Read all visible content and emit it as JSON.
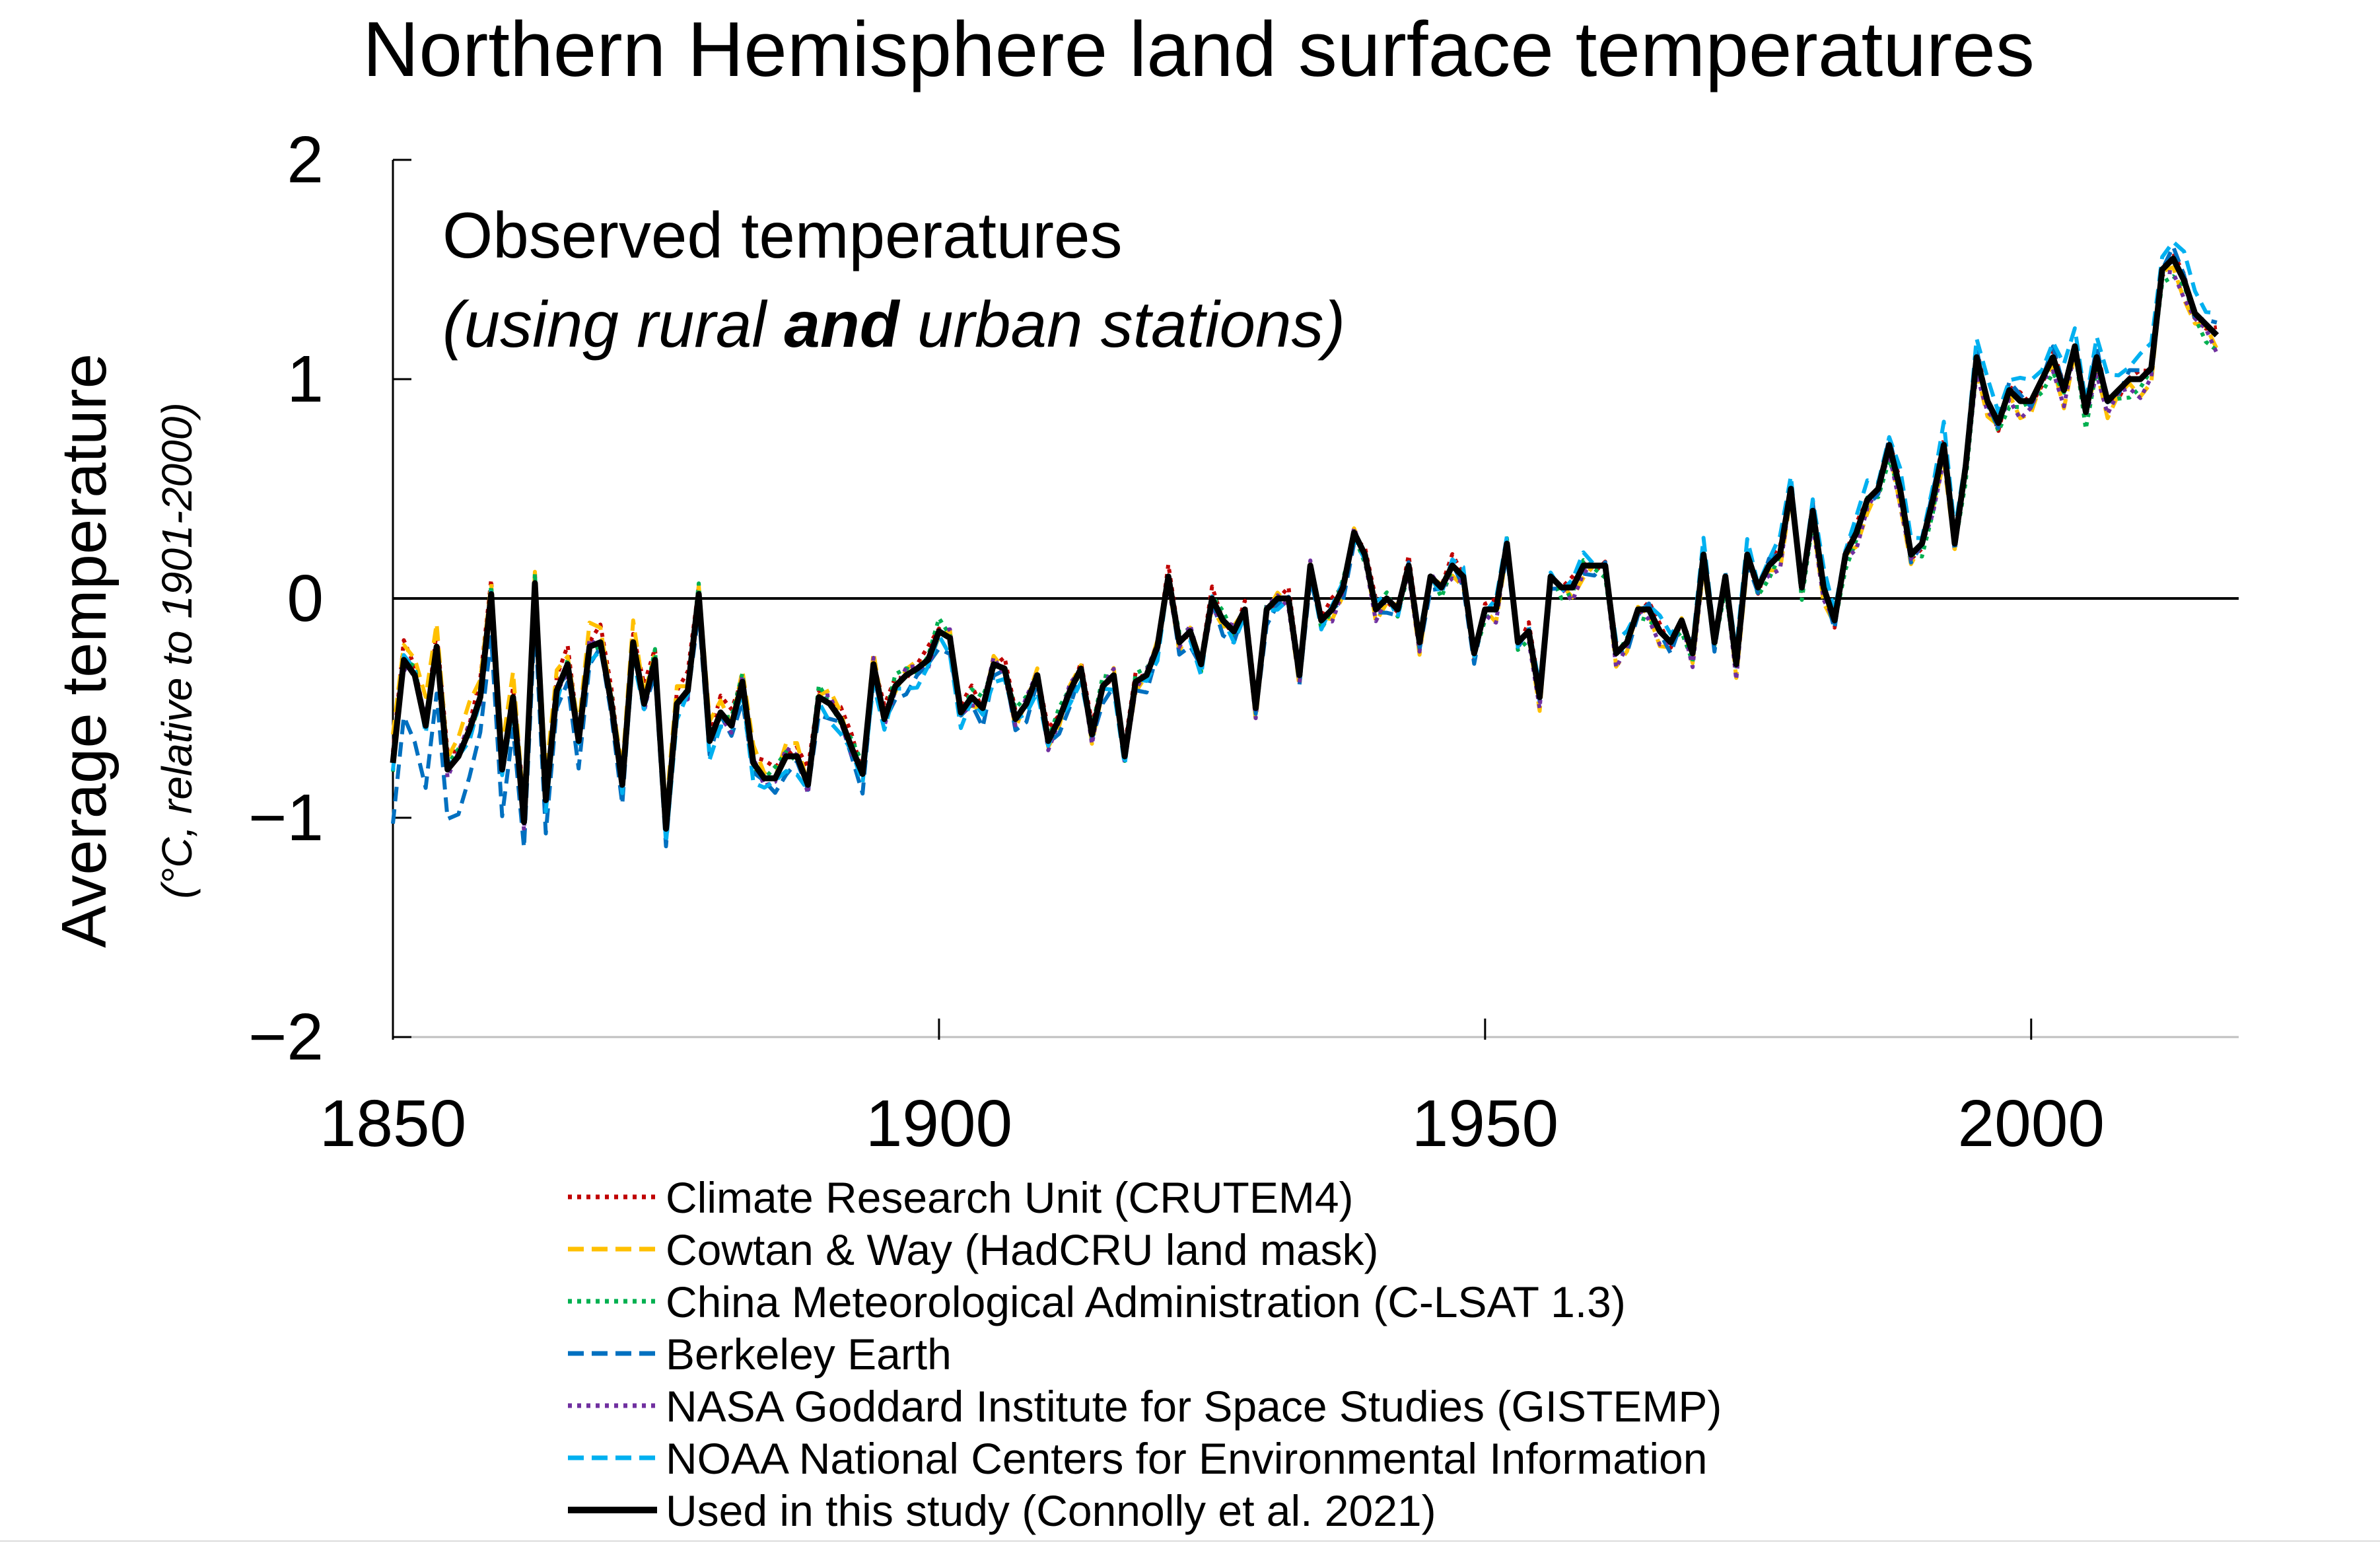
{
  "chart_data": {
    "type": "line",
    "title": "Northern Hemisphere land surface temperatures",
    "xlabel": "",
    "ylabel": "Average temperature",
    "ylabel_sub": "(°C, relative to 1901-2000)",
    "xlim": [
      1850,
      2019
    ],
    "ylim": [
      -2,
      2
    ],
    "xticks": [
      1850,
      1900,
      1950,
      2000
    ],
    "yticks": [
      2,
      1,
      0,
      -1,
      -2
    ],
    "ytick_labels": [
      "2",
      "1",
      "0",
      "−1",
      "−2"
    ],
    "annotation": {
      "line1": "Observed temperatures",
      "line2_a": "(using rural ",
      "line2_bold": "and",
      "line2_b": " urban stations)"
    },
    "grid": false,
    "legend_position": "bottom",
    "series": [
      {
        "name": "Climate Research Unit (CRUTEM4)",
        "color": "#c00000",
        "style": "dotted",
        "offsets": [
          [
            1850,
            0.05
          ],
          [
            1880,
            0.05
          ],
          [
            1900,
            0.02
          ],
          [
            2019,
            0.0
          ]
        ]
      },
      {
        "name": "Cowtan & Way (HadCRU land mask)",
        "color": "#ffc000",
        "style": "dashed",
        "offsets": [
          [
            1850,
            0.1
          ],
          [
            1880,
            0.05
          ],
          [
            1900,
            0.0
          ],
          [
            2019,
            -0.05
          ]
        ]
      },
      {
        "name": "China Meteorological Administration (C-LSAT 1.3)",
        "color": "#00b050",
        "style": "dotted",
        "offsets": [
          [
            1850,
            0.0
          ],
          [
            1900,
            0.02
          ],
          [
            2019,
            -0.05
          ]
        ]
      },
      {
        "name": "Berkeley Earth",
        "color": "#0070c0",
        "style": "dashed",
        "offsets": [
          [
            1850,
            -0.3
          ],
          [
            1870,
            -0.05
          ],
          [
            1900,
            -0.05
          ],
          [
            2019,
            0.02
          ]
        ]
      },
      {
        "name": "NASA Goddard Institute for Space Studies (GISTEMP)",
        "color": "#7030a0",
        "style": "dotted",
        "offsets": [
          [
            1850,
            0.0
          ],
          [
            1880,
            0.0
          ],
          [
            1900,
            0.0
          ],
          [
            2019,
            -0.05
          ]
        ]
      },
      {
        "name": "NOAA National Centers for Environmental Information",
        "color": "#00b0f0",
        "style": "dashed",
        "offsets": [
          [
            1850,
            0.0
          ],
          [
            1880,
            -0.05
          ],
          [
            1900,
            -0.05
          ],
          [
            2019,
            0.1
          ]
        ]
      },
      {
        "name": "Used in this study (Connolly et al. 2021)",
        "color": "#000000",
        "style": "solid",
        "offsets": [
          [
            1850,
            0
          ],
          [
            2019,
            0
          ]
        ]
      }
    ],
    "base_series": {
      "x_start": 1850,
      "values": [
        -0.75,
        -0.28,
        -0.35,
        -0.58,
        -0.22,
        -0.78,
        -0.72,
        -0.6,
        -0.45,
        0.02,
        -0.78,
        -0.45,
        -1.02,
        0.07,
        -0.92,
        -0.42,
        -0.3,
        -0.65,
        -0.22,
        -0.2,
        -0.48,
        -0.85,
        -0.2,
        -0.48,
        -0.28,
        -1.05,
        -0.48,
        -0.42,
        0.02,
        -0.65,
        -0.52,
        -0.58,
        -0.38,
        -0.75,
        -0.82,
        -0.82,
        -0.72,
        -0.72,
        -0.85,
        -0.45,
        -0.48,
        -0.55,
        -0.68,
        -0.8,
        -0.3,
        -0.55,
        -0.4,
        -0.35,
        -0.32,
        -0.28,
        -0.15,
        -0.18,
        -0.52,
        -0.45,
        -0.5,
        -0.3,
        -0.32,
        -0.55,
        -0.48,
        -0.35,
        -0.65,
        -0.55,
        -0.42,
        -0.32,
        -0.62,
        -0.4,
        -0.35,
        -0.72,
        -0.38,
        -0.35,
        -0.22,
        0.1,
        -0.2,
        -0.15,
        -0.3,
        0.0,
        -0.1,
        -0.15,
        -0.05,
        -0.5,
        -0.05,
        0.0,
        0.0,
        -0.35,
        0.15,
        -0.1,
        -0.05,
        0.05,
        0.3,
        0.2,
        -0.05,
        0.0,
        -0.05,
        0.15,
        -0.2,
        0.1,
        0.05,
        0.15,
        0.1,
        -0.25,
        -0.05,
        -0.05,
        0.25,
        -0.2,
        -0.15,
        -0.45,
        0.1,
        0.05,
        0.05,
        0.15,
        0.15,
        0.15,
        -0.25,
        -0.2,
        -0.05,
        -0.05,
        -0.15,
        -0.2,
        -0.1,
        -0.25,
        0.2,
        -0.2,
        0.1,
        -0.3,
        0.2,
        0.05,
        0.15,
        0.2,
        0.5,
        0.05,
        0.4,
        0.05,
        -0.1,
        0.2,
        0.3,
        0.45,
        0.5,
        0.7,
        0.5,
        0.2,
        0.25,
        0.45,
        0.7,
        0.25,
        0.6,
        1.1,
        0.9,
        0.8,
        0.95,
        0.9,
        0.9,
        1.0,
        1.1,
        0.95,
        1.15,
        0.85,
        1.1,
        0.9,
        0.95,
        1.0,
        1.0,
        1.05,
        1.5,
        1.55,
        1.45,
        1.3,
        1.25,
        1.2
      ]
    }
  }
}
